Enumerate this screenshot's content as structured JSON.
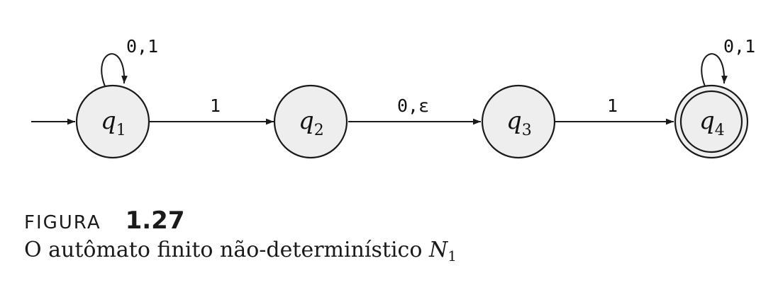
{
  "diagram": {
    "states": [
      {
        "name": "q",
        "sub": "1",
        "accept": false
      },
      {
        "name": "q",
        "sub": "2",
        "accept": false
      },
      {
        "name": "q",
        "sub": "3",
        "accept": false
      },
      {
        "name": "q",
        "sub": "4",
        "accept": true
      }
    ],
    "start_state": "q1",
    "transitions": [
      {
        "from": "q1",
        "to": "q1",
        "label": "0,1"
      },
      {
        "from": "q1",
        "to": "q2",
        "label": "1"
      },
      {
        "from": "q2",
        "to": "q3",
        "label": "0,ε"
      },
      {
        "from": "q3",
        "to": "q4",
        "label": "1"
      },
      {
        "from": "q4",
        "to": "q4",
        "label": "0,1"
      }
    ]
  },
  "caption": {
    "figure_word": "FIGURA",
    "figure_number": "1.27",
    "description": "O autômato finito não-determinístico ",
    "symbol": "N",
    "symbol_sub": "1"
  },
  "colors": {
    "state_fill": "#eeeeee",
    "stroke": "#1a1a1a"
  }
}
